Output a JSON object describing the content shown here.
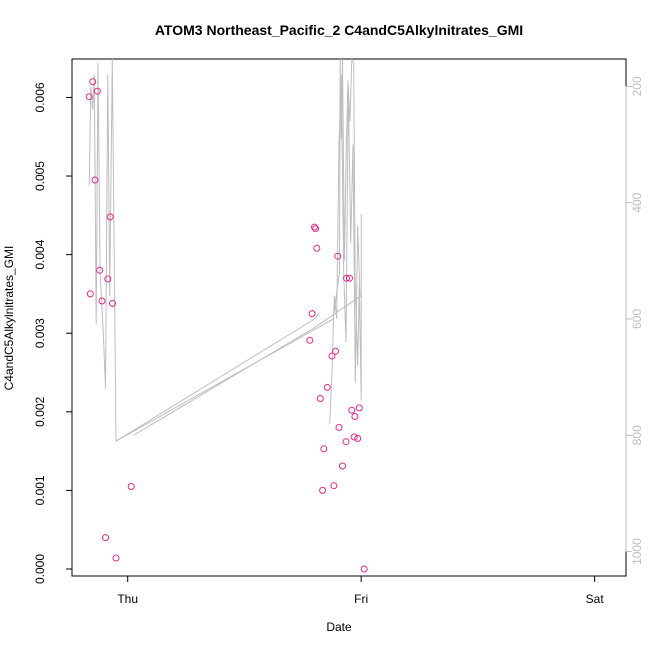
{
  "chart_data": {
    "type": "scatter",
    "title": "ATOM3 Northeast_Pacific_2 C4andC5Alkylnitrates_GMI",
    "xlabel": "Date",
    "ylabel": "C4andC5Alkylnitrates_GMI",
    "x_ticks": [
      {
        "x": 0,
        "label": "Thu"
      },
      {
        "x": 1,
        "label": "Fri"
      },
      {
        "x": 2,
        "label": "Sat"
      }
    ],
    "xlim": [
      -0.2,
      2.1
    ],
    "ylim": [
      0.0,
      0.0064
    ],
    "y_ticks": [
      {
        "y": 0.0,
        "label": "0.000"
      },
      {
        "y": 0.001,
        "label": "0.001"
      },
      {
        "y": 0.002,
        "label": "0.002"
      },
      {
        "y": 0.003,
        "label": "0.003"
      },
      {
        "y": 0.004,
        "label": "0.004"
      },
      {
        "y": 0.005,
        "label": "0.005"
      },
      {
        "y": 0.006,
        "label": "0.006"
      }
    ],
    "y2_ticks": [
      {
        "value": 200,
        "label": "200"
      },
      {
        "value": 400,
        "label": "400"
      },
      {
        "value": 600,
        "label": "600"
      },
      {
        "value": 800,
        "label": "800"
      },
      {
        "value": 1000,
        "label": "1000"
      }
    ],
    "y2lim": [
      1030,
      165
    ],
    "grid": false,
    "legend": "none",
    "series": [
      {
        "type": "points",
        "color": "#e7298a",
        "x": [
          -0.165,
          -0.16,
          -0.15,
          -0.14,
          -0.13,
          -0.12,
          -0.11,
          -0.095,
          -0.085,
          -0.075,
          -0.065,
          -0.05,
          0.015,
          0.78,
          0.79,
          0.8,
          0.805,
          0.81,
          0.825,
          0.835,
          0.84,
          0.855,
          0.875,
          0.883,
          0.89,
          0.9,
          0.905,
          0.92,
          0.935,
          0.937,
          0.95,
          0.96,
          0.97,
          0.973,
          0.985,
          0.992,
          1.013
        ],
        "y": [
          0.00601,
          0.0035,
          0.0062,
          0.00495,
          0.00608,
          0.0038,
          0.00341,
          0.0004,
          0.00369,
          0.00448,
          0.00338,
          0.00014,
          0.00105,
          0.00291,
          0.00325,
          0.00435,
          0.00433,
          0.00408,
          0.00217,
          0.001,
          0.00153,
          0.00231,
          0.00271,
          0.00106,
          0.00277,
          0.00398,
          0.0018,
          0.00131,
          0.00162,
          0.0037,
          0.0037,
          0.00202,
          0.00168,
          0.00194,
          0.00166,
          0.00205,
          0.0
        ]
      }
    ],
    "lines": [
      {
        "color": "#bdbdbd",
        "x": [
          -0.165,
          -0.158,
          -0.15,
          -0.143,
          -0.135,
          -0.127,
          -0.118,
          -0.105,
          -0.095,
          -0.085,
          -0.077,
          -0.066,
          -0.05,
          0.88,
          0.907,
          0.91,
          0.915,
          0.92,
          0.928,
          0.935,
          0.943,
          0.952,
          0.96,
          0.968,
          0.974,
          0.985,
          0.992,
          1.0,
          1.0
        ],
        "y2": [
          370,
          200,
          240,
          180,
          610,
          160,
          520,
          620,
          720,
          180,
          560,
          150,
          810,
          600,
          520,
          80,
          290,
          150,
          500,
          330,
          190,
          260,
          80,
          160,
          530,
          680,
          540,
          740,
          420
        ]
      },
      {
        "color": "#bdbdbd",
        "x": [
          0.865,
          0.875,
          0.885,
          0.895,
          0.905,
          0.915,
          0.925,
          0.935,
          0.945,
          0.955,
          0.965,
          0.975,
          0.985,
          0.995
        ],
        "y2": [
          780,
          690,
          560,
          600,
          300,
          180,
          520,
          640,
          200,
          470,
          300,
          710,
          440,
          560
        ]
      },
      {
        "color": "#bdbdbd",
        "x": [
          -0.05,
          0.8,
          0.82
        ],
        "y2": [
          810,
          600,
          590
        ]
      },
      {
        "color": "#bdbdbd",
        "x": [
          0.025,
          0.8,
          1.0
        ],
        "y2": [
          800,
          615,
          560
        ]
      }
    ]
  }
}
